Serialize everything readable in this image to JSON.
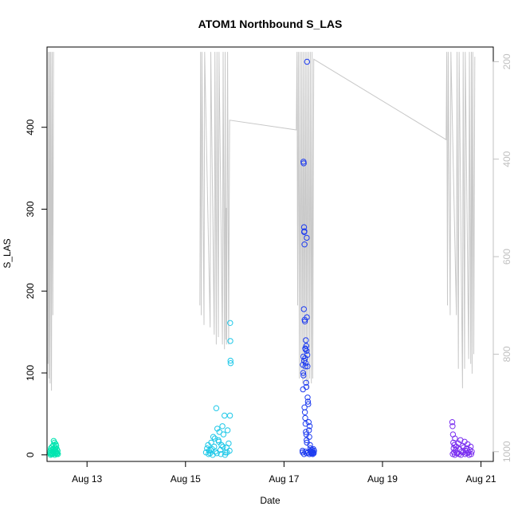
{
  "chart_data": {
    "type": "scatter",
    "title": "ATOM1 Northbound S_LAS",
    "xlabel": "Date",
    "ylabel": "S_LAS",
    "x_ticks": [
      "Aug 13",
      "Aug 15",
      "Aug 17",
      "Aug 19",
      "Aug 21"
    ],
    "y_ticks": [
      "0",
      "100",
      "200",
      "300",
      "400"
    ],
    "y2_ticks": [
      "200",
      "400",
      "600",
      "800",
      "1000"
    ],
    "xlim": [
      "2023-08-12 04:30",
      "2023-08-21 06:00"
    ],
    "ylim": [
      -8,
      498
    ],
    "y2lim": [
      1020,
      170
    ],
    "y2_direction": "reversed",
    "colors": {
      "depth_line": "#c8c8c8",
      "right_axis": "#c0c0c0",
      "clusters": [
        "#00e5b0",
        "#1ec8e8",
        "#1e3cf0",
        "#7a2ef0"
      ]
    },
    "series": [
      {
        "color": "#00e5b0",
        "points": [
          [
            "2023-08-12 06:00",
            2
          ],
          [
            "2023-08-12 06:10",
            5
          ],
          [
            "2023-08-12 06:20",
            8
          ],
          [
            "2023-08-12 06:30",
            3
          ],
          [
            "2023-08-12 06:40",
            1
          ],
          [
            "2023-08-12 06:50",
            6
          ],
          [
            "2023-08-12 07:00",
            10
          ],
          [
            "2023-08-12 07:10",
            4
          ],
          [
            "2023-08-12 07:20",
            2
          ],
          [
            "2023-08-12 07:30",
            7
          ],
          [
            "2023-08-12 07:40",
            12
          ],
          [
            "2023-08-12 07:50",
            3
          ],
          [
            "2023-08-12 08:00",
            5
          ],
          [
            "2023-08-12 08:10",
            15
          ],
          [
            "2023-08-12 08:20",
            9
          ],
          [
            "2023-08-12 08:30",
            2
          ],
          [
            "2023-08-12 08:40",
            6
          ],
          [
            "2023-08-12 08:50",
            4
          ],
          [
            "2023-08-12 09:00",
            11
          ],
          [
            "2023-08-12 09:10",
            3
          ],
          [
            "2023-08-12 09:20",
            7
          ],
          [
            "2023-08-12 09:30",
            2
          ],
          [
            "2023-08-12 09:40",
            5
          ],
          [
            "2023-08-12 09:50",
            1
          ],
          [
            "2023-08-12 06:15",
            0
          ],
          [
            "2023-08-12 07:15",
            1
          ],
          [
            "2023-08-12 08:15",
            0
          ],
          [
            "2023-08-12 09:15",
            1
          ],
          [
            "2023-08-12 07:45",
            17
          ],
          [
            "2023-08-12 08:45",
            13
          ]
        ]
      },
      {
        "color": "#1ec8e8",
        "points": [
          [
            "2023-08-15 10:00",
            3
          ],
          [
            "2023-08-15 10:30",
            8
          ],
          [
            "2023-08-15 11:00",
            12
          ],
          [
            "2023-08-15 11:30",
            5
          ],
          [
            "2023-08-15 12:00",
            2
          ],
          [
            "2023-08-15 12:30",
            15
          ],
          [
            "2023-08-15 13:00",
            7
          ],
          [
            "2023-08-15 13:30",
            22
          ],
          [
            "2023-08-15 14:00",
            10
          ],
          [
            "2023-08-15 14:30",
            4
          ],
          [
            "2023-08-15 15:00",
            57
          ],
          [
            "2023-08-15 15:30",
            32
          ],
          [
            "2023-08-15 16:00",
            18
          ],
          [
            "2023-08-15 16:30",
            28
          ],
          [
            "2023-08-15 17:00",
            6
          ],
          [
            "2023-08-15 17:30",
            12
          ],
          [
            "2023-08-15 18:00",
            35
          ],
          [
            "2023-08-15 18:30",
            25
          ],
          [
            "2023-08-15 19:00",
            48
          ],
          [
            "2023-08-15 19:30",
            3
          ],
          [
            "2023-08-15 20:00",
            9
          ],
          [
            "2023-08-15 20:30",
            30
          ],
          [
            "2023-08-15 21:00",
            14
          ],
          [
            "2023-08-15 21:30",
            5
          ],
          [
            "2023-08-15 21:45",
            161
          ],
          [
            "2023-08-15 21:50",
            139
          ],
          [
            "2023-08-15 21:55",
            115
          ],
          [
            "2023-08-15 22:00",
            112
          ],
          [
            "2023-08-15 21:40",
            48
          ],
          [
            "2023-08-15 11:15",
            1
          ],
          [
            "2023-08-15 13:15",
            0
          ],
          [
            "2023-08-15 15:15",
            2
          ],
          [
            "2023-08-15 17:15",
            1
          ],
          [
            "2023-08-15 19:15",
            0
          ],
          [
            "2023-08-15 20:15",
            3
          ],
          [
            "2023-08-15 14:15",
            20
          ],
          [
            "2023-08-15 16:15",
            16
          ],
          [
            "2023-08-15 18:15",
            10
          ],
          [
            "2023-08-15 12:15",
            6
          ]
        ]
      },
      {
        "color": "#1e3cf0",
        "points": [
          [
            "2023-08-17 09:00",
            5
          ],
          [
            "2023-08-17 09:15",
            80
          ],
          [
            "2023-08-17 09:25",
            120
          ],
          [
            "2023-08-17 09:30",
            358
          ],
          [
            "2023-08-17 09:35",
            356
          ],
          [
            "2023-08-17 09:40",
            178
          ],
          [
            "2023-08-17 09:45",
            278
          ],
          [
            "2023-08-17 09:50",
            272
          ],
          [
            "2023-08-17 09:55",
            273
          ],
          [
            "2023-08-17 10:00",
            257
          ],
          [
            "2023-08-17 10:05",
            165
          ],
          [
            "2023-08-17 10:10",
            163
          ],
          [
            "2023-08-17 10:20",
            130
          ],
          [
            "2023-08-17 10:30",
            129
          ],
          [
            "2023-08-17 10:40",
            140
          ],
          [
            "2023-08-17 10:50",
            133
          ],
          [
            "2023-08-17 11:00",
            127
          ],
          [
            "2023-08-17 11:05",
            265
          ],
          [
            "2023-08-17 11:10",
            168
          ],
          [
            "2023-08-17 11:15",
            480
          ],
          [
            "2023-08-17 09:10",
            110
          ],
          [
            "2023-08-17 09:20",
            100
          ],
          [
            "2023-08-17 09:28",
            97
          ],
          [
            "2023-08-17 09:50",
            115
          ],
          [
            "2023-08-17 10:15",
            118
          ],
          [
            "2023-08-17 10:25",
            108
          ],
          [
            "2023-08-17 10:35",
            112
          ],
          [
            "2023-08-17 10:45",
            88
          ],
          [
            "2023-08-17 10:55",
            83
          ],
          [
            "2023-08-17 11:20",
            122
          ],
          [
            "2023-08-17 11:25",
            108
          ],
          [
            "2023-08-17 11:30",
            70
          ],
          [
            "2023-08-17 11:40",
            65
          ],
          [
            "2023-08-17 11:50",
            62
          ],
          [
            "2023-08-17 10:00",
            58
          ],
          [
            "2023-08-17 10:10",
            52
          ],
          [
            "2023-08-17 10:20",
            45
          ],
          [
            "2023-08-17 10:30",
            38
          ],
          [
            "2023-08-17 10:40",
            28
          ],
          [
            "2023-08-17 10:50",
            25
          ],
          [
            "2023-08-17 11:00",
            18
          ],
          [
            "2023-08-17 11:10",
            15
          ],
          [
            "2023-08-17 12:00",
            40
          ],
          [
            "2023-08-17 12:10",
            30
          ],
          [
            "2023-08-17 12:20",
            22
          ],
          [
            "2023-08-17 12:30",
            35
          ],
          [
            "2023-08-17 12:40",
            12
          ],
          [
            "2023-08-17 12:50",
            8
          ],
          [
            "2023-08-17 13:00",
            4
          ],
          [
            "2023-08-17 13:10",
            2
          ],
          [
            "2023-08-17 09:05",
            3
          ],
          [
            "2023-08-17 09:45",
            1
          ],
          [
            "2023-08-17 10:25",
            4
          ],
          [
            "2023-08-17 11:05",
            2
          ],
          [
            "2023-08-17 11:45",
            3
          ],
          [
            "2023-08-17 12:25",
            1
          ],
          [
            "2023-08-17 12:55",
            5
          ],
          [
            "2023-08-17 13:20",
            3
          ],
          [
            "2023-08-17 13:30",
            2
          ],
          [
            "2023-08-17 13:40",
            6
          ],
          [
            "2023-08-17 13:50",
            4
          ],
          [
            "2023-08-17 14:00",
            1
          ],
          [
            "2023-08-17 14:10",
            3
          ],
          [
            "2023-08-17 14:20",
            7
          ],
          [
            "2023-08-17 14:30",
            2
          ],
          [
            "2023-08-17 14:40",
            5
          ]
        ]
      },
      {
        "color": "#7a2ef0",
        "points": [
          [
            "2023-08-20 10:00",
            40
          ],
          [
            "2023-08-20 10:10",
            35
          ],
          [
            "2023-08-20 10:20",
            25
          ],
          [
            "2023-08-20 10:30",
            15
          ],
          [
            "2023-08-20 10:40",
            8
          ],
          [
            "2023-08-20 10:50",
            3
          ],
          [
            "2023-08-20 11:00",
            12
          ],
          [
            "2023-08-20 11:20",
            20
          ],
          [
            "2023-08-20 11:40",
            6
          ],
          [
            "2023-08-20 12:00",
            10
          ],
          [
            "2023-08-20 12:30",
            2
          ],
          [
            "2023-08-20 13:00",
            14
          ],
          [
            "2023-08-20 13:30",
            7
          ],
          [
            "2023-08-20 14:00",
            18
          ],
          [
            "2023-08-20 14:30",
            4
          ],
          [
            "2023-08-20 15:00",
            11
          ],
          [
            "2023-08-20 15:30",
            9
          ],
          [
            "2023-08-20 16:00",
            16
          ],
          [
            "2023-08-20 16:30",
            5
          ],
          [
            "2023-08-20 17:00",
            8
          ],
          [
            "2023-08-20 17:30",
            13
          ],
          [
            "2023-08-20 18:00",
            3
          ],
          [
            "2023-08-20 18:30",
            6
          ],
          [
            "2023-08-20 19:00",
            10
          ],
          [
            "2023-08-20 19:30",
            4
          ],
          [
            "2023-08-20 10:15",
            1
          ],
          [
            "2023-08-20 11:15",
            0
          ],
          [
            "2023-08-20 12:15",
            2
          ],
          [
            "2023-08-20 13:15",
            1
          ],
          [
            "2023-08-20 14:15",
            0
          ],
          [
            "2023-08-20 15:15",
            3
          ],
          [
            "2023-08-20 16:15",
            1
          ],
          [
            "2023-08-20 17:15",
            2
          ],
          [
            "2023-08-20 18:15",
            0
          ],
          [
            "2023-08-20 19:15",
            1
          ]
        ]
      }
    ],
    "depth_line": [
      [
        [
          "2023-08-12 05:00",
          820
        ],
        [
          "2023-08-12 05:15",
          180
        ],
        [
          "2023-08-12 05:30",
          850
        ],
        [
          "2023-08-12 05:45",
          180
        ],
        [
          "2023-08-12 06:00",
          860
        ],
        [
          "2023-08-12 06:20",
          180
        ],
        [
          "2023-08-12 06:40",
          875
        ],
        [
          "2023-08-12 07:00",
          180
        ],
        [
          "2023-08-12 07:20",
          720
        ],
        [
          "2023-08-12 07:40",
          180
        ]
      ],
      [
        [
          "2023-08-15 07:00",
          700
        ],
        [
          "2023-08-15 07:20",
          180
        ],
        [
          "2023-08-15 07:40",
          720
        ],
        [
          "2023-08-15 08:00",
          180
        ],
        [
          "2023-08-15 09:00",
          740
        ],
        [
          "2023-08-15 09:20",
          180
        ],
        [
          "2023-08-15 12:00",
          745
        ],
        [
          "2023-08-15 12:20",
          180
        ],
        [
          "2023-08-15 14:00",
          760
        ],
        [
          "2023-08-15 14:20",
          180
        ],
        [
          "2023-08-15 15:00",
          780
        ],
        [
          "2023-08-15 15:20",
          180
        ],
        [
          "2023-08-15 16:00",
          765
        ],
        [
          "2023-08-15 16:20",
          180
        ],
        [
          "2023-08-15 18:00",
          780
        ],
        [
          "2023-08-15 18:20",
          180
        ],
        [
          "2023-08-15 19:00",
          790
        ],
        [
          "2023-08-15 19:20",
          180
        ],
        [
          "2023-08-15 19:40",
          770
        ],
        [
          "2023-08-15 19:50",
          500
        ],
        [
          "2023-08-15 20:00",
          780
        ],
        [
          "2023-08-15 20:30",
          180
        ],
        [
          "2023-08-15 21:00",
          780
        ],
        [
          "2023-08-15 21:30",
          320
        ],
        [
          "2023-08-17 06:00",
          340
        ],
        [
          "2023-08-17 06:20",
          180
        ],
        [
          "2023-08-17 06:40",
          700
        ],
        [
          "2023-08-17 07:00",
          180
        ],
        [
          "2023-08-17 07:30",
          850
        ],
        [
          "2023-08-17 07:50",
          180
        ],
        [
          "2023-08-17 08:20",
          840
        ],
        [
          "2023-08-17 08:40",
          180
        ],
        [
          "2023-08-17 09:10",
          860
        ],
        [
          "2023-08-17 09:30",
          180
        ],
        [
          "2023-08-17 10:00",
          850
        ],
        [
          "2023-08-17 10:20",
          180
        ],
        [
          "2023-08-17 10:50",
          860
        ],
        [
          "2023-08-17 11:10",
          180
        ],
        [
          "2023-08-17 11:40",
          870
        ],
        [
          "2023-08-17 12:00",
          180
        ],
        [
          "2023-08-17 12:30",
          850
        ],
        [
          "2023-08-17 12:50",
          180
        ],
        [
          "2023-08-17 13:20",
          860
        ],
        [
          "2023-08-17 13:40",
          180
        ],
        [
          "2023-08-17 14:00",
          850
        ],
        [
          "2023-08-17 14:30",
          195
        ],
        [
          "2023-08-20 07:00",
          360
        ],
        [
          "2023-08-20 07:20",
          180
        ],
        [
          "2023-08-20 07:40",
          700
        ],
        [
          "2023-08-20 08:00",
          180
        ],
        [
          "2023-08-20 09:00",
          720
        ],
        [
          "2023-08-20 09:20",
          180
        ],
        [
          "2023-08-20 12:00",
          720
        ],
        [
          "2023-08-20 12:20",
          180
        ],
        [
          "2023-08-20 13:00",
          830
        ],
        [
          "2023-08-20 13:20",
          180
        ],
        [
          "2023-08-20 15:00",
          870
        ],
        [
          "2023-08-20 15:20",
          180
        ],
        [
          "2023-08-20 16:00",
          830
        ],
        [
          "2023-08-20 16:20",
          180
        ],
        [
          "2023-08-20 18:00",
          810
        ],
        [
          "2023-08-20 18:20",
          180
        ],
        [
          "2023-08-20 19:00",
          820
        ],
        [
          "2023-08-20 19:20",
          180
        ],
        [
          "2023-08-20 19:40",
          840
        ],
        [
          "2023-08-20 20:00",
          180
        ],
        [
          "2023-08-20 20:30",
          800
        ],
        [
          "2023-08-20 21:00",
          190
        ]
      ]
    ]
  }
}
